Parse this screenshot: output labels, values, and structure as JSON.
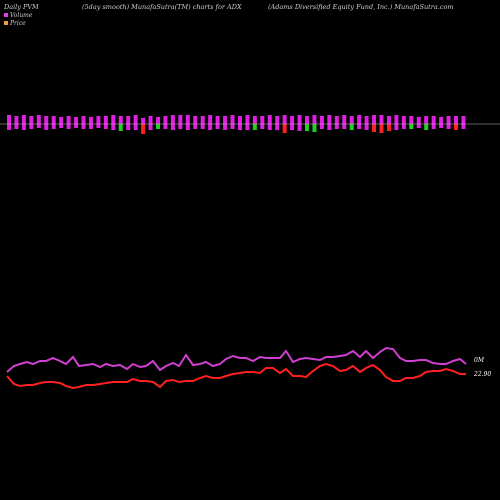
{
  "header": {
    "left": "Daily PVM",
    "center": "(5day smooth) MunafaSutra(TM) charts for ADX",
    "right": "(Adams Diversified Equity Fund, Inc.) MunafaSutra.com"
  },
  "legend": {
    "volume": {
      "label": "Volume",
      "color": "#e040e0"
    },
    "price": {
      "label": "Price",
      "color": "#f0a040"
    }
  },
  "colors": {
    "bar_up": "#e020e0",
    "bar_down_strong": "#ff2020",
    "bar_green": "#20d020",
    "volume_line": "#d040d0",
    "price_line": "#ff2020",
    "baseline": "#c0c0c0"
  },
  "chart_data": {
    "type": "bar",
    "bars": [
      {
        "up": 9,
        "down": 6,
        "color": "#e020e0"
      },
      {
        "up": 8,
        "down": 5,
        "color": "#e020e0"
      },
      {
        "up": 9,
        "down": 6,
        "color": "#e020e0"
      },
      {
        "up": 8,
        "down": 5,
        "color": "#e020e0"
      },
      {
        "up": 9,
        "down": 4,
        "color": "#e020e0"
      },
      {
        "up": 8,
        "down": 6,
        "color": "#e020e0"
      },
      {
        "up": 8,
        "down": 5,
        "color": "#e020e0"
      },
      {
        "up": 7,
        "down": 4,
        "color": "#e020e0"
      },
      {
        "up": 8,
        "down": 5,
        "color": "#e020e0"
      },
      {
        "up": 7,
        "down": 4,
        "color": "#e020e0"
      },
      {
        "up": 8,
        "down": 5,
        "color": "#e020e0"
      },
      {
        "up": 7,
        "down": 5,
        "color": "#e020e0"
      },
      {
        "up": 8,
        "down": 4,
        "color": "#e020e0"
      },
      {
        "up": 8,
        "down": 5,
        "color": "#e020e0"
      },
      {
        "up": 9,
        "down": 6,
        "color": "#e020e0"
      },
      {
        "up": 8,
        "down": 7,
        "color": "#20d020"
      },
      {
        "up": 8,
        "down": 6,
        "color": "#e020e0"
      },
      {
        "up": 9,
        "down": 6,
        "color": "#e020e0"
      },
      {
        "up": 6,
        "down": 10,
        "color": "#ff2020"
      },
      {
        "up": 8,
        "down": 6,
        "color": "#e020e0"
      },
      {
        "up": 7,
        "down": 5,
        "color": "#20d020"
      },
      {
        "up": 8,
        "down": 5,
        "color": "#e020e0"
      },
      {
        "up": 9,
        "down": 6,
        "color": "#e020e0"
      },
      {
        "up": 9,
        "down": 5,
        "color": "#e020e0"
      },
      {
        "up": 9,
        "down": 6,
        "color": "#e020e0"
      },
      {
        "up": 8,
        "down": 5,
        "color": "#e020e0"
      },
      {
        "up": 8,
        "down": 5,
        "color": "#e020e0"
      },
      {
        "up": 9,
        "down": 6,
        "color": "#e020e0"
      },
      {
        "up": 8,
        "down": 5,
        "color": "#e020e0"
      },
      {
        "up": 8,
        "down": 6,
        "color": "#e020e0"
      },
      {
        "up": 9,
        "down": 5,
        "color": "#e020e0"
      },
      {
        "up": 8,
        "down": 6,
        "color": "#e020e0"
      },
      {
        "up": 9,
        "down": 6,
        "color": "#e020e0"
      },
      {
        "up": 8,
        "down": 6,
        "color": "#20d020"
      },
      {
        "up": 8,
        "down": 5,
        "color": "#e020e0"
      },
      {
        "up": 9,
        "down": 6,
        "color": "#e020e0"
      },
      {
        "up": 8,
        "down": 6,
        "color": "#e020e0"
      },
      {
        "up": 9,
        "down": 9,
        "color": "#ff2020"
      },
      {
        "up": 8,
        "down": 6,
        "color": "#e020e0"
      },
      {
        "up": 9,
        "down": 7,
        "color": "#e020e0"
      },
      {
        "up": 8,
        "down": 7,
        "color": "#20d020"
      },
      {
        "up": 9,
        "down": 8,
        "color": "#20d020"
      },
      {
        "up": 8,
        "down": 5,
        "color": "#e020e0"
      },
      {
        "up": 9,
        "down": 6,
        "color": "#e020e0"
      },
      {
        "up": 8,
        "down": 5,
        "color": "#e020e0"
      },
      {
        "up": 9,
        "down": 5,
        "color": "#e020e0"
      },
      {
        "up": 8,
        "down": 6,
        "color": "#20d020"
      },
      {
        "up": 9,
        "down": 5,
        "color": "#e020e0"
      },
      {
        "up": 8,
        "down": 6,
        "color": "#e020e0"
      },
      {
        "up": 9,
        "down": 8,
        "color": "#ff2020"
      },
      {
        "up": 9,
        "down": 9,
        "color": "#ff2020"
      },
      {
        "up": 8,
        "down": 7,
        "color": "#ff2020"
      },
      {
        "up": 9,
        "down": 6,
        "color": "#e020e0"
      },
      {
        "up": 8,
        "down": 5,
        "color": "#e020e0"
      },
      {
        "up": 8,
        "down": 5,
        "color": "#20d020"
      },
      {
        "up": 7,
        "down": 4,
        "color": "#e020e0"
      },
      {
        "up": 8,
        "down": 6,
        "color": "#20d020"
      },
      {
        "up": 8,
        "down": 5,
        "color": "#e020e0"
      },
      {
        "up": 7,
        "down": 4,
        "color": "#e020e0"
      },
      {
        "up": 8,
        "down": 5,
        "color": "#e020e0"
      },
      {
        "up": 8,
        "down": 6,
        "color": "#ff2020"
      },
      {
        "up": 8,
        "down": 5,
        "color": "#e020e0"
      }
    ],
    "volume_line": [
      [
        7,
        372
      ],
      [
        14,
        366
      ],
      [
        20,
        364
      ],
      [
        27,
        362
      ],
      [
        33,
        364
      ],
      [
        40,
        361
      ],
      [
        46,
        361
      ],
      [
        53,
        358
      ],
      [
        60,
        361
      ],
      [
        66,
        364
      ],
      [
        73,
        357
      ],
      [
        79,
        366
      ],
      [
        86,
        365
      ],
      [
        93,
        364
      ],
      [
        100,
        367
      ],
      [
        106,
        364
      ],
      [
        113,
        366
      ],
      [
        120,
        365
      ],
      [
        127,
        369
      ],
      [
        133,
        364
      ],
      [
        140,
        367
      ],
      [
        146,
        366
      ],
      [
        153,
        361
      ],
      [
        160,
        370
      ],
      [
        166,
        366
      ],
      [
        173,
        363
      ],
      [
        179,
        366
      ],
      [
        186,
        355
      ],
      [
        193,
        365
      ],
      [
        200,
        364
      ],
      [
        206,
        362
      ],
      [
        213,
        366
      ],
      [
        220,
        364
      ],
      [
        226,
        359
      ],
      [
        233,
        356
      ],
      [
        240,
        358
      ],
      [
        246,
        358
      ],
      [
        253,
        361
      ],
      [
        260,
        357
      ],
      [
        266,
        358
      ],
      [
        273,
        358
      ],
      [
        280,
        358
      ],
      [
        286,
        351
      ],
      [
        293,
        362
      ],
      [
        300,
        359
      ],
      [
        306,
        358
      ],
      [
        313,
        359
      ],
      [
        320,
        360
      ],
      [
        326,
        357
      ],
      [
        333,
        357
      ],
      [
        340,
        356
      ],
      [
        346,
        355
      ],
      [
        353,
        351
      ],
      [
        360,
        357
      ],
      [
        366,
        351
      ],
      [
        373,
        358
      ],
      [
        380,
        352
      ],
      [
        386,
        348
      ],
      [
        393,
        349
      ],
      [
        400,
        358
      ],
      [
        406,
        361
      ],
      [
        413,
        361
      ],
      [
        420,
        360
      ],
      [
        426,
        360
      ],
      [
        433,
        363
      ],
      [
        440,
        364
      ],
      [
        446,
        364
      ],
      [
        453,
        361
      ],
      [
        460,
        359
      ],
      [
        466,
        364
      ]
    ],
    "price_line": [
      [
        7,
        376
      ],
      [
        14,
        384
      ],
      [
        20,
        386
      ],
      [
        27,
        385
      ],
      [
        33,
        385
      ],
      [
        40,
        383
      ],
      [
        46,
        382
      ],
      [
        53,
        382
      ],
      [
        60,
        383
      ],
      [
        66,
        386
      ],
      [
        73,
        388
      ],
      [
        79,
        387
      ],
      [
        86,
        385
      ],
      [
        93,
        385
      ],
      [
        100,
        384
      ],
      [
        106,
        383
      ],
      [
        113,
        382
      ],
      [
        120,
        382
      ],
      [
        127,
        382
      ],
      [
        133,
        379
      ],
      [
        140,
        381
      ],
      [
        146,
        381
      ],
      [
        153,
        382
      ],
      [
        160,
        387
      ],
      [
        166,
        381
      ],
      [
        173,
        380
      ],
      [
        179,
        382
      ],
      [
        186,
        381
      ],
      [
        193,
        381
      ],
      [
        200,
        378
      ],
      [
        206,
        376
      ],
      [
        213,
        378
      ],
      [
        220,
        378
      ],
      [
        226,
        376
      ],
      [
        233,
        374
      ],
      [
        240,
        373
      ],
      [
        246,
        372
      ],
      [
        253,
        372
      ],
      [
        260,
        373
      ],
      [
        266,
        368
      ],
      [
        273,
        368
      ],
      [
        280,
        373
      ],
      [
        286,
        369
      ],
      [
        293,
        376
      ],
      [
        300,
        376
      ],
      [
        306,
        377
      ],
      [
        313,
        371
      ],
      [
        320,
        366
      ],
      [
        326,
        364
      ],
      [
        333,
        366
      ],
      [
        340,
        371
      ],
      [
        346,
        370
      ],
      [
        353,
        366
      ],
      [
        360,
        372
      ],
      [
        366,
        368
      ],
      [
        373,
        365
      ],
      [
        380,
        370
      ],
      [
        386,
        377
      ],
      [
        393,
        381
      ],
      [
        400,
        381
      ],
      [
        406,
        378
      ],
      [
        413,
        378
      ],
      [
        420,
        376
      ],
      [
        426,
        372
      ],
      [
        433,
        371
      ],
      [
        440,
        371
      ],
      [
        446,
        369
      ],
      [
        453,
        371
      ],
      [
        460,
        374
      ],
      [
        466,
        374
      ]
    ],
    "volume_end_label": "0M",
    "price_end_label": "22.90"
  }
}
